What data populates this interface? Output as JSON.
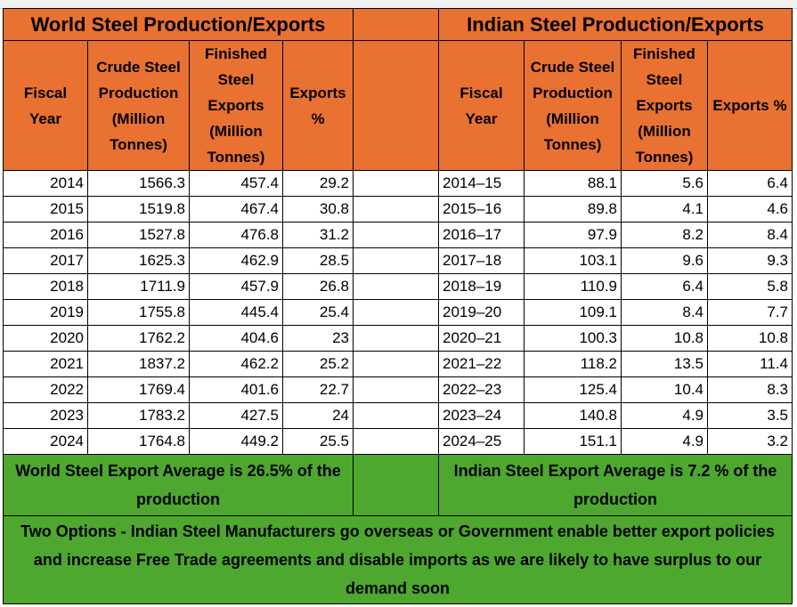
{
  "colors": {
    "header": "#E97132",
    "summary": "#4EA72E"
  },
  "world": {
    "title": "World Steel Production/Exports",
    "headers": [
      "Fiscal Year",
      "Crude Steel Production (Million Tonnes)",
      "Finished Steel Exports (Million Tonnes)",
      "Exports %"
    ],
    "rows": [
      [
        "2014",
        "1566.3",
        "457.4",
        "29.2"
      ],
      [
        "2015",
        "1519.8",
        "467.4",
        "30.8"
      ],
      [
        "2016",
        "1527.8",
        "476.8",
        "31.2"
      ],
      [
        "2017",
        "1625.3",
        "462.9",
        "28.5"
      ],
      [
        "2018",
        "1711.9",
        "457.9",
        "26.8"
      ],
      [
        "2019",
        "1755.8",
        "445.4",
        "25.4"
      ],
      [
        "2020",
        "1762.2",
        "404.6",
        "23"
      ],
      [
        "2021",
        "1837.2",
        "462.2",
        "25.2"
      ],
      [
        "2022",
        "1769.4",
        "401.6",
        "22.7"
      ],
      [
        "2023",
        "1783.2",
        "427.5",
        "24"
      ],
      [
        "2024",
        "1764.8",
        "449.2",
        "25.5"
      ]
    ],
    "summary": "World Steel Export Average is 26.5% of the production"
  },
  "india": {
    "title": "Indian Steel Production/Exports",
    "headers": [
      "Fiscal Year",
      "Crude Steel Production (Million Tonnes)",
      "Finished Steel Exports (Million Tonnes)",
      "Exports %"
    ],
    "rows": [
      [
        "2014–15",
        "88.1",
        "5.6",
        "6.4"
      ],
      [
        "2015–16",
        "89.8",
        "4.1",
        "4.6"
      ],
      [
        "2016–17",
        "97.9",
        "8.2",
        "8.4"
      ],
      [
        "2017–18",
        "103.1",
        "9.6",
        "9.3"
      ],
      [
        "2018–19",
        "110.9",
        "6.4",
        "5.8"
      ],
      [
        "2019–20",
        "109.1",
        "8.4",
        "7.7"
      ],
      [
        "2020–21",
        "100.3",
        "10.8",
        "10.8"
      ],
      [
        "2021–22",
        "118.2",
        "13.5",
        "11.4"
      ],
      [
        "2022–23",
        "125.4",
        "10.4",
        "8.3"
      ],
      [
        "2023–24",
        "140.8",
        "4.9",
        "3.5"
      ],
      [
        "2024–25",
        "151.1",
        "4.9",
        "3.2"
      ]
    ],
    "summary": "Indian Steel Export Average is 7.2 % of the production"
  },
  "conclusion": "Two Options -  Indian Steel Manufacturers go overseas or Government enable better export policies and increase Free Trade agreements and disable imports as we are likely to have surplus to our demand soon"
}
